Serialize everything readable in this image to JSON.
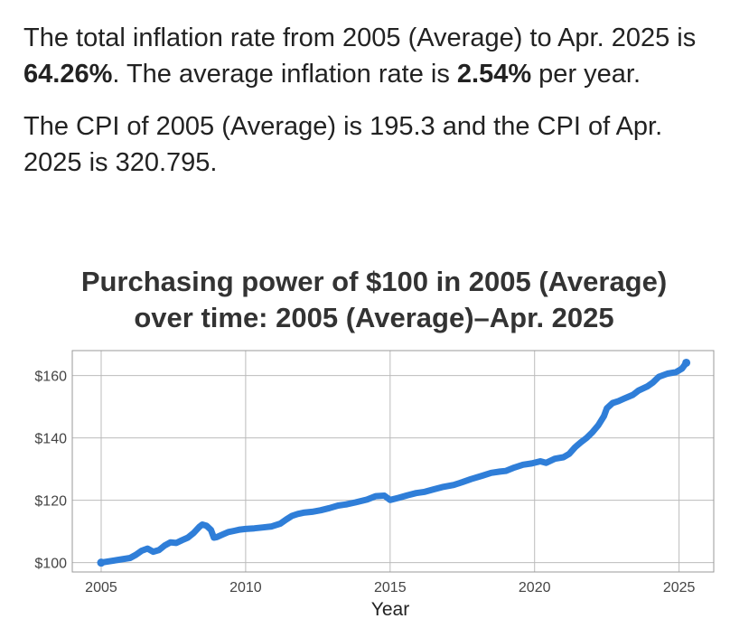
{
  "summary": {
    "line1_a": "The total inflation rate from 2005 (Average) to Apr. 2025 is ",
    "total_rate": "64.26%",
    "line1_b": ". The average inflation rate is ",
    "avg_rate": "2.54%",
    "line1_c": " per year.",
    "line2": "The CPI of 2005 (Average) is 195.3 and the CPI of Apr. 2025 is 320.795."
  },
  "colors": {
    "series": "#2f7ed8",
    "grid": "#bbbbbb",
    "border": "#999999"
  },
  "chart_data": {
    "type": "line",
    "title_line1": "Purchasing power of $100 in 2005 (Average)",
    "title_line2": "over time: 2005 (Average)–Apr. 2025",
    "xlabel": "Year",
    "ylabel": "",
    "xlim": [
      2004.0,
      2026.2
    ],
    "ylim": [
      97,
      168
    ],
    "x_ticks": [
      2005,
      2010,
      2015,
      2020,
      2025
    ],
    "x_tick_labels": [
      "2005",
      "2010",
      "2015",
      "2020",
      "2025"
    ],
    "y_ticks": [
      100,
      120,
      140,
      160
    ],
    "y_tick_labels": [
      "$100",
      "$120",
      "$140",
      "$160"
    ],
    "grid": true,
    "series": [
      {
        "x": [
          2005.0,
          2006.0,
          2006.2,
          2006.4,
          2006.6,
          2006.8,
          2007.0,
          2007.2,
          2007.4,
          2007.6,
          2007.8,
          2008.0,
          2008.2,
          2008.4,
          2008.5,
          2008.65,
          2008.8,
          2008.9,
          2009.0,
          2009.2,
          2009.4,
          2009.6,
          2009.8,
          2010.0,
          2010.3,
          2010.6,
          2010.9,
          2011.2,
          2011.4,
          2011.6,
          2011.8,
          2012.0,
          2012.3,
          2012.6,
          2012.9,
          2013.2,
          2013.5,
          2013.8,
          2014.2,
          2014.5,
          2014.8,
          2015.0,
          2015.3,
          2015.6,
          2015.9,
          2016.2,
          2016.5,
          2016.8,
          2017.2,
          2017.5,
          2017.8,
          2018.2,
          2018.5,
          2018.8,
          2019.0,
          2019.3,
          2019.6,
          2019.9,
          2020.2,
          2020.4,
          2020.7,
          2021.0,
          2021.2,
          2021.4,
          2021.6,
          2021.8,
          2022.0,
          2022.2,
          2022.4,
          2022.5,
          2022.7,
          2022.9,
          2023.1,
          2023.4,
          2023.6,
          2023.9,
          2024.1,
          2024.3,
          2024.6,
          2024.9,
          2025.1,
          2025.25
        ],
        "values": [
          100.0,
          101.5,
          102.5,
          103.8,
          104.5,
          103.5,
          104.0,
          105.5,
          106.5,
          106.3,
          107.2,
          108.0,
          109.5,
          111.5,
          112.2,
          111.8,
          110.5,
          108.0,
          108.2,
          109.0,
          109.8,
          110.2,
          110.6,
          110.8,
          111.0,
          111.3,
          111.6,
          112.5,
          113.8,
          115.0,
          115.6,
          116.0,
          116.3,
          116.8,
          117.5,
          118.3,
          118.7,
          119.3,
          120.2,
          121.3,
          121.5,
          120.1,
          120.8,
          121.6,
          122.3,
          122.7,
          123.5,
          124.2,
          124.9,
          125.8,
          126.8,
          127.9,
          128.8,
          129.2,
          129.4,
          130.5,
          131.4,
          131.8,
          132.5,
          132.0,
          133.3,
          133.8,
          134.9,
          137.0,
          138.6,
          140.0,
          141.8,
          144.0,
          147.0,
          149.5,
          151.2,
          151.8,
          152.6,
          153.8,
          155.2,
          156.5,
          157.8,
          159.6,
          160.6,
          161.1,
          162.2,
          164.1
        ]
      }
    ]
  }
}
